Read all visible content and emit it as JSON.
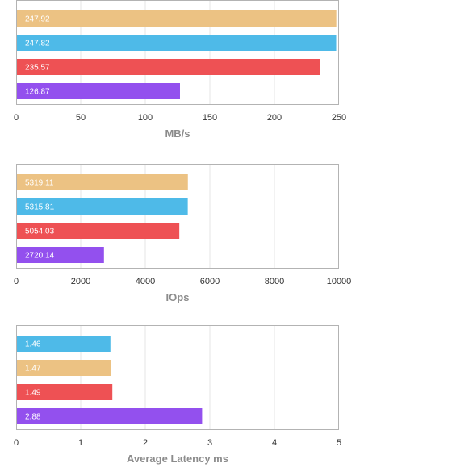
{
  "colors": {
    "orange": "#ecc283",
    "blue": "#4ebae8",
    "red": "#ee5154",
    "purple": "#9350ee",
    "grid": "#e6e6e6",
    "frame": "#b3b3b3"
  },
  "chart_data": [
    {
      "type": "bar",
      "orientation": "horizontal",
      "xlabel": "MB/s",
      "xlim": [
        0,
        250
      ],
      "ticks": [
        0,
        50,
        100,
        150,
        200,
        250
      ],
      "grid": true,
      "bars": [
        {
          "value": 247.92,
          "label": "247.92",
          "color": "#ecc283"
        },
        {
          "value": 247.82,
          "label": "247.82",
          "color": "#4ebae8"
        },
        {
          "value": 235.57,
          "label": "235.57",
          "color": "#ee5154"
        },
        {
          "value": 126.87,
          "label": "126.87",
          "color": "#9350ee"
        }
      ]
    },
    {
      "type": "bar",
      "orientation": "horizontal",
      "xlabel": "IOps",
      "xlim": [
        0,
        10000
      ],
      "ticks": [
        0,
        2000,
        4000,
        6000,
        8000,
        10000
      ],
      "grid": true,
      "bars": [
        {
          "value": 5319.11,
          "label": "5319.11",
          "color": "#ecc283"
        },
        {
          "value": 5315.81,
          "label": "5315.81",
          "color": "#4ebae8"
        },
        {
          "value": 5054.03,
          "label": "5054.03",
          "color": "#ee5154"
        },
        {
          "value": 2720.14,
          "label": "2720.14",
          "color": "#9350ee"
        }
      ]
    },
    {
      "type": "bar",
      "orientation": "horizontal",
      "xlabel": "Average Latency ms",
      "xlim": [
        0,
        5
      ],
      "ticks": [
        0,
        1,
        2,
        3,
        4,
        5
      ],
      "grid": true,
      "bars": [
        {
          "value": 1.46,
          "label": "1.46",
          "color": "#4ebae8"
        },
        {
          "value": 1.47,
          "label": "1.47",
          "color": "#ecc283"
        },
        {
          "value": 1.49,
          "label": "1.49",
          "color": "#ee5154"
        },
        {
          "value": 2.88,
          "label": "2.88",
          "color": "#9350ee"
        }
      ]
    }
  ]
}
